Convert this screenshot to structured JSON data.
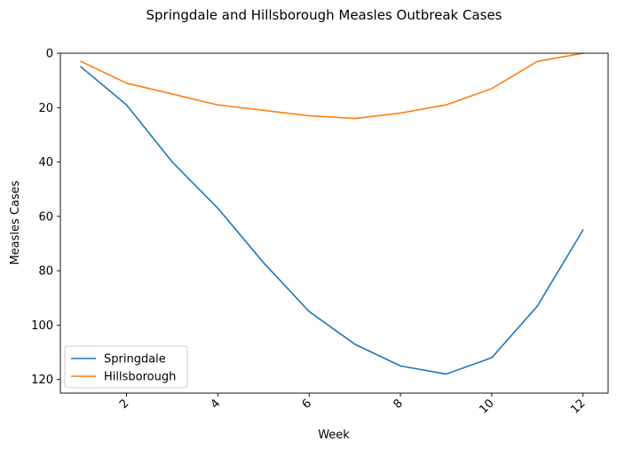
{
  "chart_data": {
    "type": "line",
    "title": "Springdale and Hillsborough Measles Outbreak Cases",
    "xlabel": "Week",
    "ylabel": "Measles Cases",
    "x": [
      1,
      2,
      3,
      4,
      5,
      6,
      7,
      8,
      9,
      10,
      11,
      12
    ],
    "xlim": [
      0.55,
      12.55
    ],
    "ylim": [
      125,
      0
    ],
    "y_inverted": true,
    "xticks": [
      2,
      4,
      6,
      8,
      10,
      12
    ],
    "xtick_rotation": 45,
    "yticks": [
      0,
      20,
      40,
      60,
      80,
      100,
      120
    ],
    "grid": false,
    "legend_position": "lower-left",
    "series": [
      {
        "name": "Springdale",
        "color": "#1f77b4",
        "values": [
          5,
          19,
          40,
          57,
          77,
          95,
          107,
          115,
          118,
          112,
          93,
          65
        ]
      },
      {
        "name": "Hillsborough",
        "color": "#ff7f0e",
        "values": [
          3,
          11,
          15,
          19,
          21,
          23,
          24,
          22,
          19,
          13,
          3,
          0
        ]
      }
    ]
  }
}
